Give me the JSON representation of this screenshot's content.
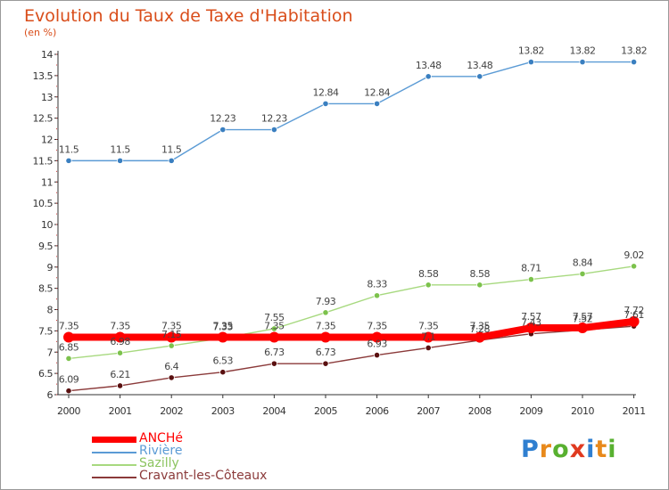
{
  "header": {
    "title": "Evolution du Taux de Taxe d'Habitation",
    "subtitle": "(en %)"
  },
  "logo": {
    "letters": [
      "P",
      "r",
      "o",
      "x",
      "i",
      "t",
      "i"
    ],
    "colors": [
      "#2f7fd0",
      "#e8891b",
      "#58b030",
      "#e03a20",
      "#2f7fd0",
      "#e8891b",
      "#58b030"
    ]
  },
  "chart_data": {
    "type": "line",
    "title": "Evolution du Taux de Taxe d'Habitation",
    "subtitle": "(en %)",
    "xlabel": "",
    "ylabel": "(en %)",
    "ylim": [
      6,
      14
    ],
    "y_ticks": [
      "6",
      "6.5",
      "7",
      "7.5",
      "8",
      "8.5",
      "9",
      "9.5",
      "10",
      "10.5",
      "11",
      "11.5",
      "12",
      "12.5",
      "13",
      "13.5",
      "14"
    ],
    "categories": [
      "2000",
      "2001",
      "2002",
      "2003",
      "2004",
      "2005",
      "2006",
      "2007",
      "2008",
      "2009",
      "2010",
      "2011"
    ],
    "grid": false,
    "legend_position": "bottom-left",
    "series": [
      {
        "name": "Rivière",
        "color": "#5b9bd5",
        "marker_color": "#3a7fc0",
        "values": [
          11.5,
          11.5,
          11.5,
          12.23,
          12.23,
          12.84,
          12.84,
          13.48,
          13.48,
          13.82,
          13.82,
          13.82
        ],
        "labels": [
          "11.5",
          "11.5",
          "11.5",
          "12.23",
          "12.23",
          "12.84",
          "12.84",
          "13.48",
          "13.48",
          "13.82",
          "13.82",
          "13.82"
        ]
      },
      {
        "name": "Sazilly",
        "color": "#a7d97f",
        "marker_color": "#7cc24c",
        "values": [
          6.85,
          6.98,
          7.15,
          7.33,
          7.55,
          7.93,
          8.33,
          8.58,
          8.58,
          8.71,
          8.84,
          9.02
        ],
        "labels": [
          "6.85",
          "6.98",
          "7.15",
          "7.33",
          "7.55",
          "7.93",
          "8.33",
          "8.58",
          "8.58",
          "8.71",
          "8.84",
          "9.02"
        ]
      },
      {
        "name": "Cravant-les-Côteaux",
        "color": "#8b3a3a",
        "marker_color": "#5a1010",
        "values": [
          6.09,
          6.21,
          6.4,
          6.53,
          6.73,
          6.73,
          6.93,
          7.1,
          7.28,
          7.43,
          7.52,
          7.61
        ],
        "labels": [
          "6.09",
          "6.21",
          "6.4",
          "6.53",
          "6.73",
          "6.73",
          "6.93",
          "7.1",
          "7.28",
          "7.43",
          "7.52",
          "7.61"
        ]
      },
      {
        "name": "ANCHé",
        "color": "#ff0000",
        "marker_color": "#ff0000",
        "values": [
          7.35,
          7.35,
          7.35,
          7.35,
          7.35,
          7.35,
          7.35,
          7.35,
          7.35,
          7.57,
          7.57,
          7.72
        ],
        "labels": [
          "7.35",
          "7.35",
          "7.35",
          "7.35",
          "7.35",
          "7.35",
          "7.35",
          "7.35",
          "7.35",
          "7.57",
          "7.57",
          "7.72"
        ]
      }
    ],
    "legend": [
      {
        "name": "ANCHé",
        "color": "#ff0000",
        "thick": true
      },
      {
        "name": "Rivière",
        "color": "#5b9bd5",
        "thick": false
      },
      {
        "name": "Sazilly",
        "color": "#a7d97f",
        "thick": false
      },
      {
        "name": "Cravant-les-Côteaux",
        "color": "#8b3a3a",
        "thick": false
      }
    ]
  }
}
